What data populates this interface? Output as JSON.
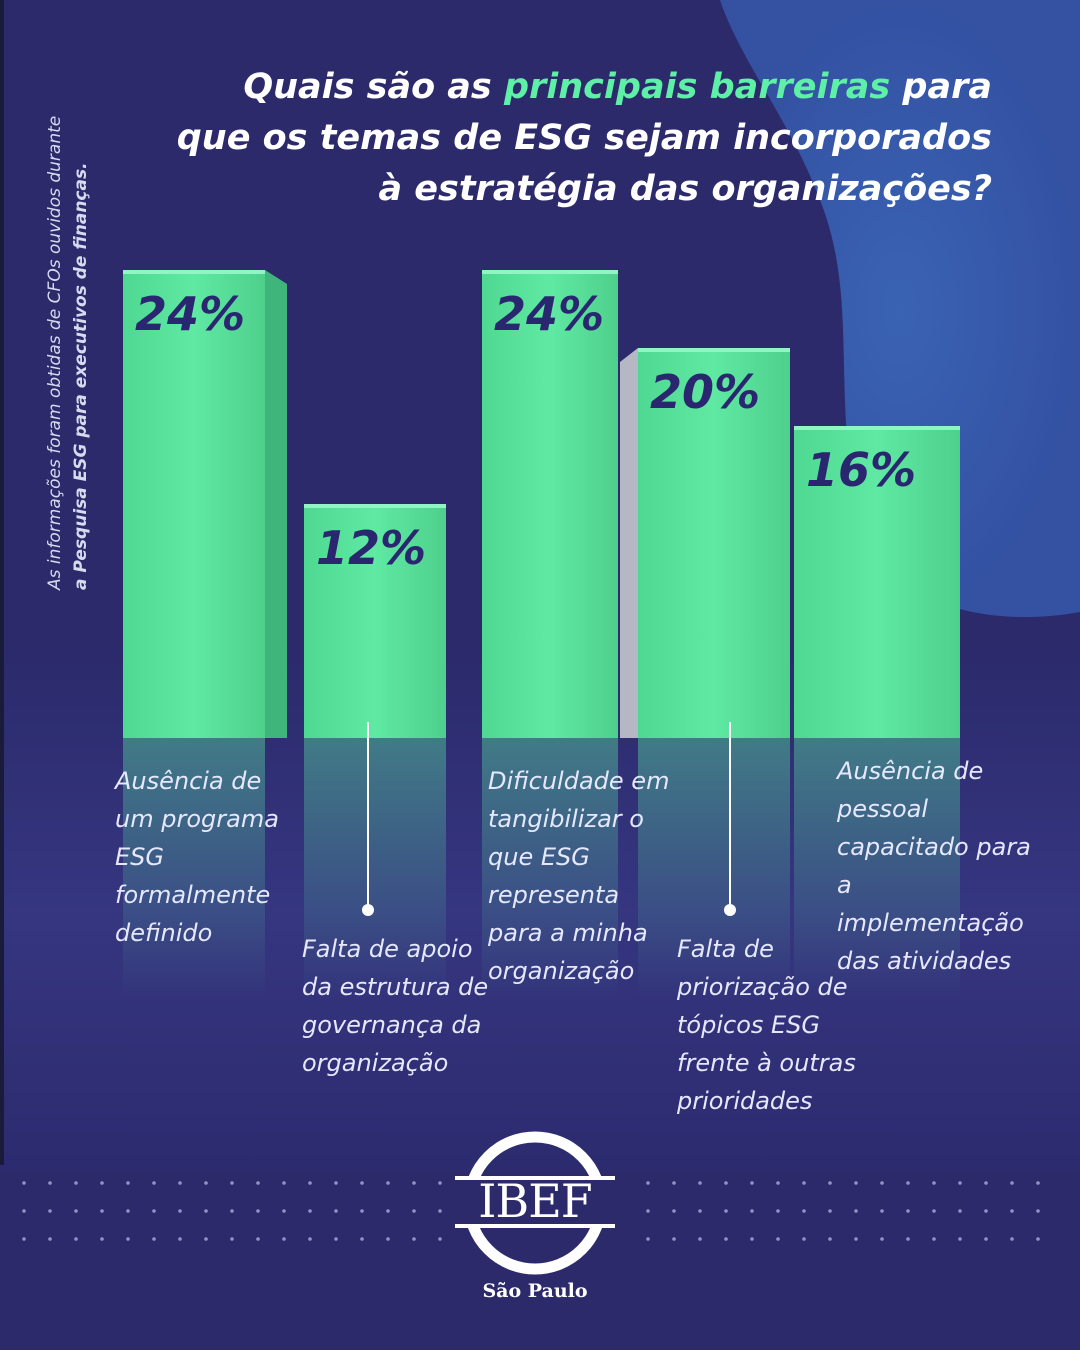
{
  "title": {
    "part1": "Quais são as ",
    "highlight": "principais barreiras",
    "part2": " para que os temas de ESG sejam incorporados à estratégia das organizações?"
  },
  "side_note": {
    "line1": "As informações foram obtidas de CFOs ouvidos durante",
    "line2": "a Pesquisa ESG para executivos de finanças."
  },
  "chart_data": {
    "type": "bar",
    "categories": [
      "Ausência de um programa ESG formalmente definido",
      "Falta de apoio da estrutura de governança da organização",
      "Dificuldade em tangibilizar o que ESG representa para a minha organização",
      "Falta de priorização de tópicos ESG frente à outras prioridades",
      "Ausência de pessoal capacitado para a implementação das atividades"
    ],
    "values": [
      24,
      12,
      24,
      20,
      16
    ],
    "value_labels": [
      "24%",
      "12%",
      "24%",
      "20%",
      "16%"
    ],
    "ylim": [
      0,
      24
    ],
    "grid": false,
    "legend": "none"
  },
  "logo": {
    "name": "IBEF",
    "subtitle": "São Paulo"
  },
  "colors": {
    "background": "#2c2a6b",
    "bar": "#5de8a0",
    "highlight": "#5ef0a6",
    "value_text": "#2a2770",
    "accent_blob": "#3656a8"
  }
}
